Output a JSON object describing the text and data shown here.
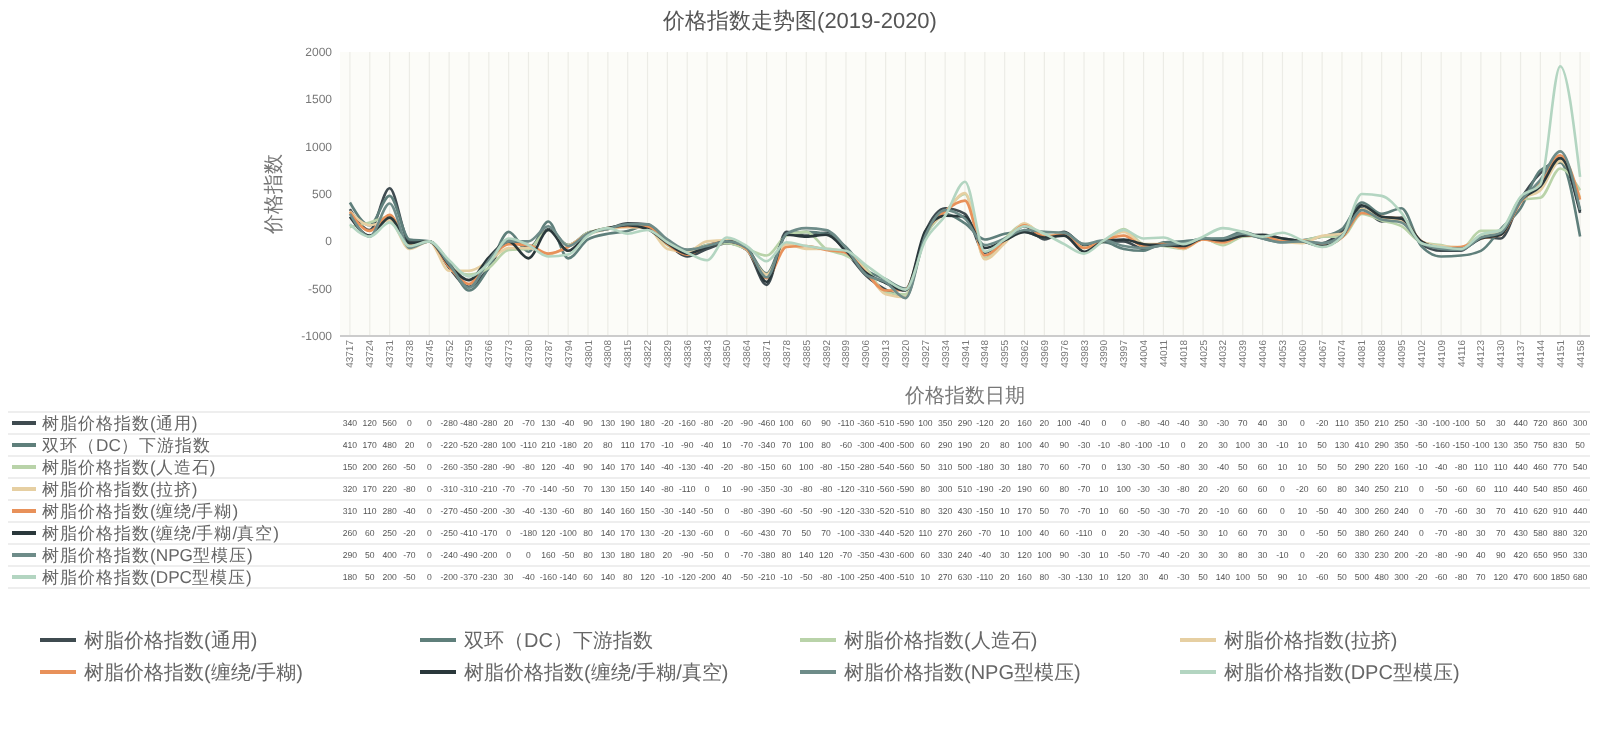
{
  "chart_data": {
    "type": "line",
    "title": "价格指数走势图(2019-2020)",
    "xlabel": "价格指数日期",
    "ylabel": "价格指数",
    "categories": [
      "43717",
      "43724",
      "43731",
      "43738",
      "43745",
      "43752",
      "43759",
      "43766",
      "43773",
      "43780",
      "43787",
      "43794",
      "43801",
      "43808",
      "43815",
      "43822",
      "43829",
      "43836",
      "43843",
      "43850",
      "43864",
      "43871",
      "43878",
      "43885",
      "43892",
      "43899",
      "43906",
      "43913",
      "43920",
      "43927",
      "43934",
      "43941",
      "43948",
      "43955",
      "43962",
      "43969",
      "43976",
      "43983",
      "43990",
      "43997",
      "44004",
      "44011",
      "44018",
      "44025",
      "44032",
      "44039",
      "44046",
      "44053",
      "44060",
      "44067",
      "44074",
      "44081",
      "44088",
      "44095",
      "44102",
      "44109",
      "44116",
      "44123",
      "44130",
      "44137",
      "44144",
      "44151",
      "44158"
    ],
    "series": [
      {
        "name": "树脂价格指数(通用)",
        "color": "#3f4b50",
        "values": [
          340,
          120,
          560,
          0,
          0,
          -280,
          -480,
          -280,
          20,
          -70,
          130,
          -40,
          90,
          130,
          190,
          180,
          -20,
          -160,
          -80,
          -20,
          -90,
          -460,
          100,
          60,
          90,
          -110,
          -360,
          -510,
          -590,
          100,
          350,
          290,
          -120,
          20,
          160,
          20,
          100,
          -40,
          0,
          0,
          -80,
          -40,
          -40,
          30,
          -30,
          70,
          40,
          30,
          0,
          -20,
          110,
          350,
          210,
          250,
          -30,
          -100,
          -100,
          50,
          30,
          440,
          720,
          860,
          300
        ]
      },
      {
        "name": "双环（DC）下游指数",
        "color": "#5f7f7b",
        "values": [
          410,
          170,
          480,
          20,
          0,
          -220,
          -520,
          -280,
          100,
          -110,
          210,
          -180,
          20,
          80,
          110,
          170,
          -10,
          -90,
          -40,
          10,
          -70,
          -340,
          70,
          100,
          80,
          -60,
          -300,
          -400,
          -500,
          60,
          290,
          190,
          20,
          80,
          100,
          40,
          90,
          -30,
          -10,
          -80,
          -100,
          -10,
          0,
          20,
          30,
          100,
          30,
          -10,
          10,
          50,
          130,
          410,
          290,
          350,
          -50,
          -160,
          -150,
          -100,
          130,
          350,
          750,
          830,
          50
        ]
      },
      {
        "name": "树脂价格指数(人造石)",
        "color": "#b9d3a9",
        "values": [
          150,
          200,
          260,
          -50,
          0,
          -260,
          -350,
          -280,
          -90,
          -80,
          120,
          -40,
          90,
          140,
          170,
          140,
          -40,
          -130,
          -40,
          -20,
          -80,
          -150,
          60,
          100,
          -80,
          -150,
          -280,
          -540,
          -560,
          50,
          310,
          500,
          -180,
          30,
          180,
          70,
          60,
          -70,
          0,
          130,
          -30,
          -50,
          -80,
          30,
          -40,
          50,
          60,
          10,
          10,
          50,
          50,
          290,
          220,
          160,
          -10,
          -40,
          -80,
          110,
          110,
          440,
          460,
          770,
          540
        ]
      },
      {
        "name": "树脂价格指数(拉挤)",
        "color": "#e6cfa2",
        "values": [
          320,
          170,
          220,
          -80,
          0,
          -310,
          -310,
          -210,
          -70,
          -70,
          -140,
          -50,
          70,
          130,
          150,
          140,
          -80,
          -110,
          0,
          10,
          -90,
          -350,
          -30,
          -80,
          -80,
          -120,
          -310,
          -560,
          -590,
          80,
          300,
          510,
          -190,
          -20,
          190,
          60,
          80,
          -70,
          10,
          100,
          -30,
          -30,
          -80,
          20,
          -20,
          60,
          60,
          0,
          -20,
          60,
          80,
          340,
          250,
          210,
          0,
          -50,
          -60,
          60,
          110,
          440,
          540,
          850,
          460
        ]
      },
      {
        "name": "树脂价格指数(缠绕/手糊)",
        "color": "#e8915a",
        "values": [
          310,
          110,
          280,
          -40,
          0,
          -270,
          -450,
          -200,
          -30,
          -40,
          -130,
          -60,
          80,
          140,
          160,
          150,
          -30,
          -140,
          -50,
          0,
          -80,
          -390,
          -60,
          -50,
          -90,
          -120,
          -330,
          -520,
          -510,
          80,
          320,
          430,
          -150,
          10,
          170,
          50,
          70,
          -70,
          10,
          60,
          -50,
          -30,
          -70,
          20,
          -10,
          60,
          60,
          0,
          10,
          -50,
          40,
          300,
          260,
          240,
          0,
          -70,
          -60,
          30,
          70,
          410,
          620,
          910,
          440
        ]
      },
      {
        "name": "树脂价格指数(缠绕/手糊/真空)",
        "color": "#2a383b",
        "values": [
          260,
          60,
          250,
          -20,
          0,
          -250,
          -410,
          -170,
          0,
          -180,
          120,
          -100,
          80,
          140,
          170,
          130,
          -20,
          -130,
          -60,
          0,
          -60,
          -430,
          70,
          50,
          70,
          -100,
          -330,
          -440,
          -520,
          110,
          270,
          260,
          -70,
          10,
          100,
          40,
          60,
          -110,
          0,
          20,
          -30,
          -40,
          -50,
          30,
          10,
          60,
          70,
          30,
          0,
          -50,
          50,
          380,
          260,
          240,
          0,
          -70,
          -80,
          30,
          70,
          430,
          580,
          880,
          320
        ]
      },
      {
        "name": "树脂价格指数(NPG型模压)",
        "color": "#6e8c89",
        "values": [
          290,
          50,
          400,
          -70,
          0,
          -240,
          -490,
          -200,
          0,
          0,
          160,
          -50,
          80,
          130,
          180,
          180,
          20,
          -90,
          -50,
          0,
          -70,
          -380,
          80,
          140,
          120,
          -70,
          -350,
          -430,
          -600,
          60,
          330,
          240,
          -40,
          30,
          120,
          100,
          90,
          -30,
          10,
          -50,
          -70,
          -40,
          -20,
          30,
          30,
          80,
          30,
          -10,
          0,
          -20,
          60,
          330,
          230,
          200,
          -20,
          -80,
          -90,
          40,
          90,
          420,
          650,
          950,
          330
        ]
      },
      {
        "name": "树脂价格指数(DPC型模压)",
        "color": "#b3d5c1",
        "values": [
          180,
          50,
          200,
          -50,
          0,
          -200,
          -370,
          -230,
          30,
          -40,
          -160,
          -140,
          60,
          140,
          80,
          120,
          -10,
          -120,
          -200,
          40,
          -50,
          -210,
          -10,
          -50,
          -80,
          -100,
          -250,
          -400,
          -510,
          10,
          270,
          630,
          -110,
          20,
          160,
          80,
          -30,
          -130,
          10,
          120,
          30,
          40,
          -30,
          50,
          140,
          100,
          50,
          90,
          10,
          -60,
          50,
          500,
          480,
          300,
          -20,
          -60,
          -80,
          70,
          120,
          470,
          600,
          1850,
          680
        ]
      }
    ],
    "ylim": [
      -1000,
      2000
    ],
    "yticks": [
      -1000,
      -500,
      0,
      500,
      1000,
      1500,
      2000
    ],
    "grid": "x",
    "legend": "bottom",
    "marker": "none",
    "line_style": "solid",
    "data_labels": true
  }
}
